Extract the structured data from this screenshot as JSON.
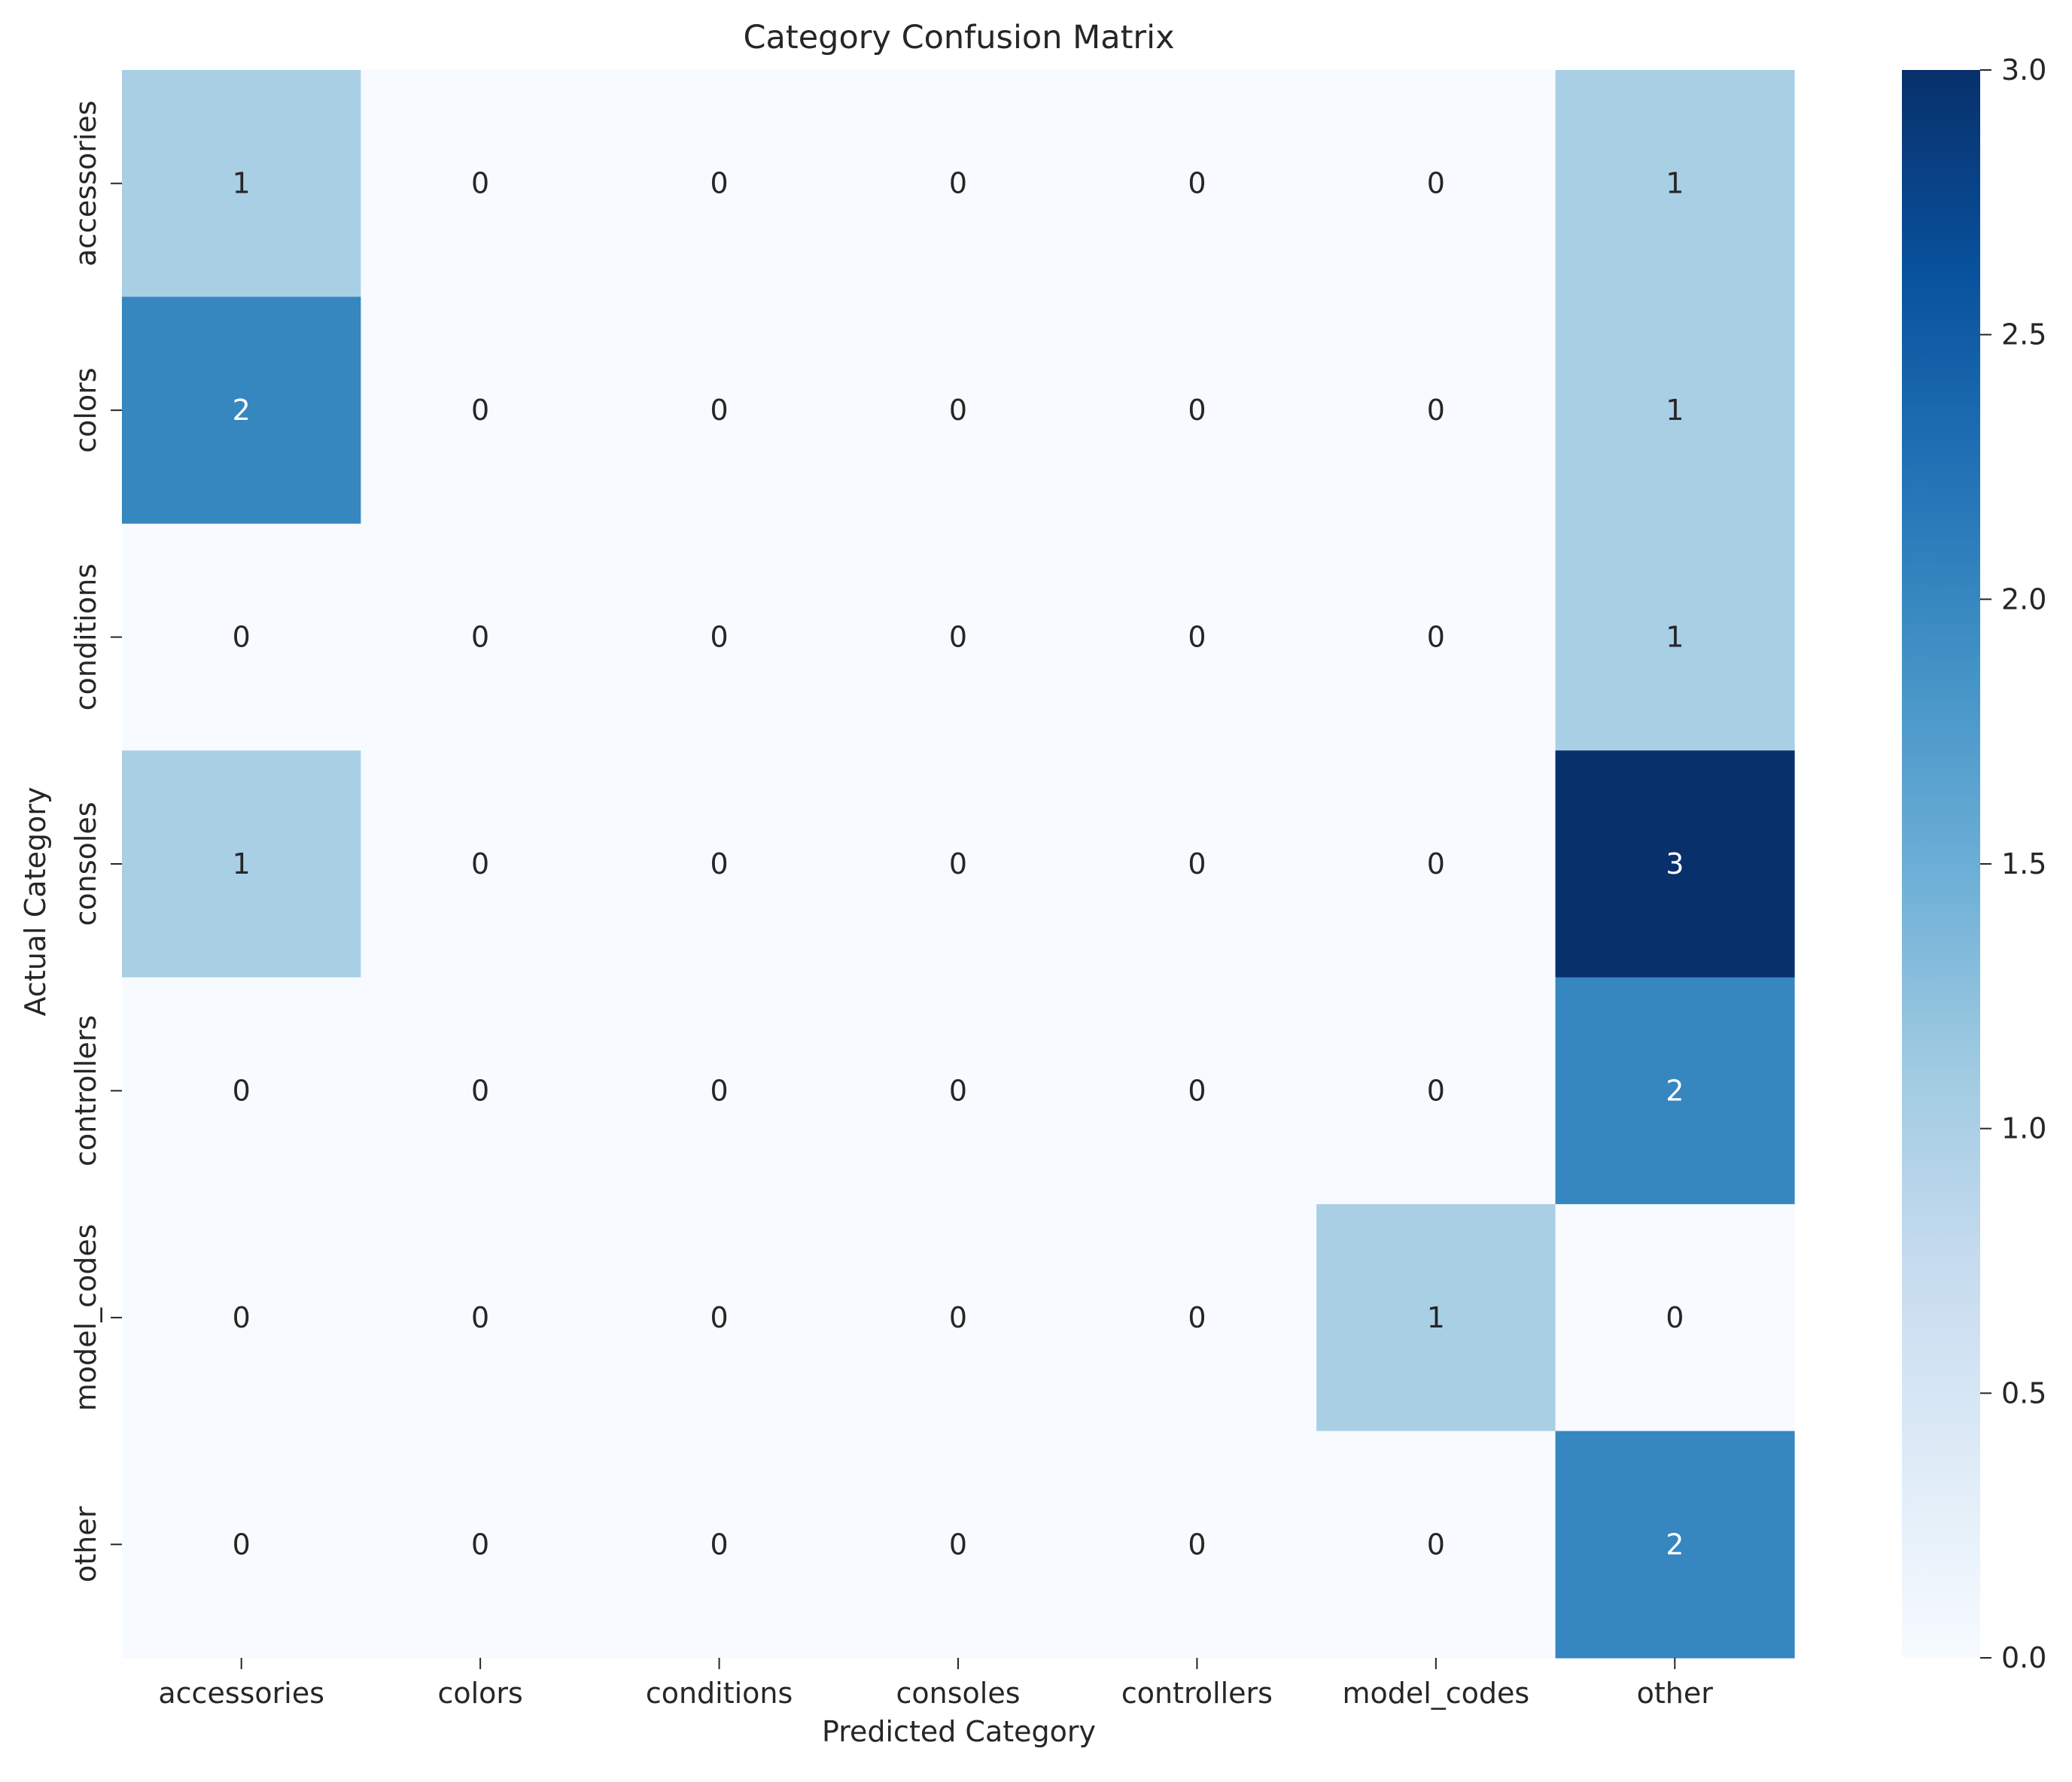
{
  "chart_data": {
    "type": "heatmap",
    "title": "Category Confusion Matrix",
    "xlabel": "Predicted Category",
    "ylabel": "Actual Category",
    "x_categories": [
      "accessories",
      "colors",
      "conditions",
      "consoles",
      "controllers",
      "model_codes",
      "other"
    ],
    "y_categories": [
      "accessories",
      "colors",
      "conditions",
      "consoles",
      "controllers",
      "model_codes",
      "other"
    ],
    "values": [
      [
        1,
        0,
        0,
        0,
        0,
        0,
        1
      ],
      [
        2,
        0,
        0,
        0,
        0,
        0,
        1
      ],
      [
        0,
        0,
        0,
        0,
        0,
        0,
        1
      ],
      [
        1,
        0,
        0,
        0,
        0,
        0,
        3
      ],
      [
        0,
        0,
        0,
        0,
        0,
        0,
        2
      ],
      [
        0,
        0,
        0,
        0,
        0,
        1,
        0
      ],
      [
        0,
        0,
        0,
        0,
        0,
        0,
        2
      ]
    ],
    "colorscale": "Blues",
    "colorbar": {
      "range": [
        0,
        3
      ],
      "ticks": [
        "0.0",
        "0.5",
        "1.0",
        "1.5",
        "2.0",
        "2.5",
        "3.0"
      ]
    },
    "cell_colors": {
      "0": "#f7fbff",
      "1": "#a9cfe5",
      "2": "#3686c0",
      "3": "#08306b"
    },
    "annotation_colors": {
      "dark": "#262626",
      "light": "#ffffff"
    }
  }
}
